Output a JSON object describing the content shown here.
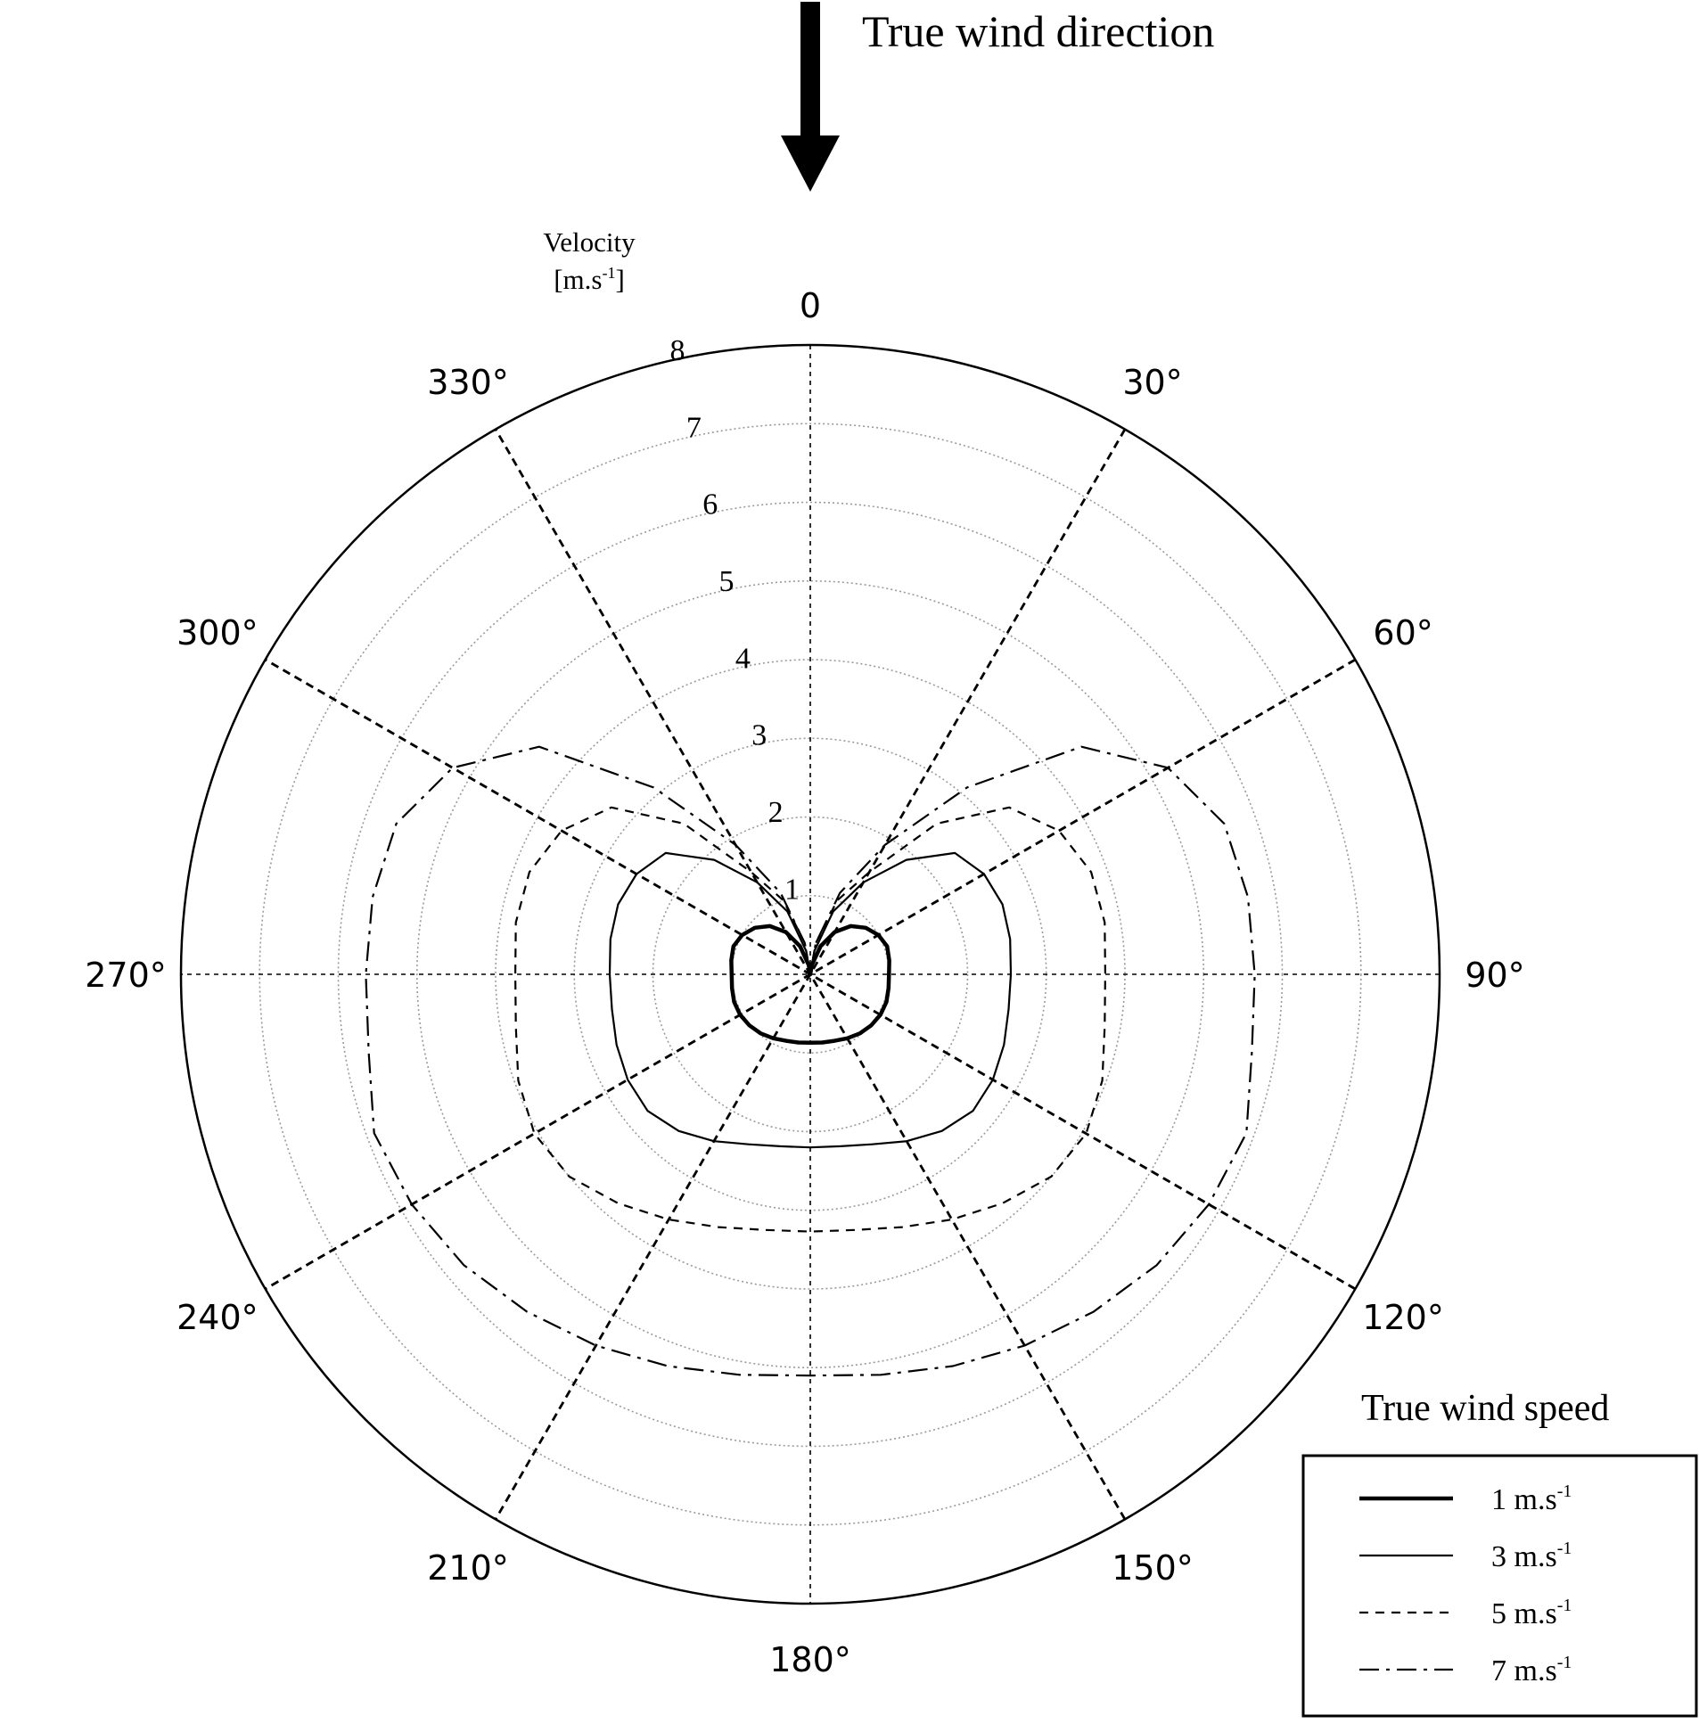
{
  "chart_data": {
    "type": "polar-line",
    "annotation": {
      "text": "True wind direction"
    },
    "radial_axis": {
      "title_line1": "Velocity",
      "title_unit": "[m.s",
      "title_sup": "-1",
      "title_close": "]",
      "range": [
        0,
        8
      ],
      "ticks": [
        "1",
        "2",
        "3",
        "4",
        "5",
        "6",
        "7",
        "8"
      ]
    },
    "angular_axis": {
      "labels": [
        {
          "angle": 0,
          "text": "0"
        },
        {
          "angle": 30,
          "text": "30°"
        },
        {
          "angle": 60,
          "text": "60°"
        },
        {
          "angle": 90,
          "text": "90°"
        },
        {
          "angle": 120,
          "text": "120°"
        },
        {
          "angle": 150,
          "text": "150°"
        },
        {
          "angle": 180,
          "text": "180°"
        },
        {
          "angle": 210,
          "text": "210°"
        },
        {
          "angle": 240,
          "text": "240°"
        },
        {
          "angle": 270,
          "text": "270°"
        },
        {
          "angle": 300,
          "text": "300°"
        },
        {
          "angle": 330,
          "text": "330°"
        }
      ],
      "direction": "clockwise",
      "zero": "top"
    },
    "grid": true,
    "legend": {
      "title": "True wind speed",
      "placement": "bottom-right"
    },
    "series": [
      {
        "name": "1 m.s",
        "name_sup": "-1",
        "style": "thick",
        "points": [
          [
            0,
            0
          ],
          [
            10,
            0.12
          ],
          [
            20,
            0.38
          ],
          [
            30,
            0.62
          ],
          [
            40,
            0.8
          ],
          [
            50,
            0.92
          ],
          [
            60,
            1.0
          ],
          [
            70,
            1.04
          ],
          [
            80,
            1.02
          ],
          [
            90,
            1.0
          ],
          [
            100,
            1.01
          ],
          [
            110,
            1.03
          ],
          [
            120,
            1.03
          ],
          [
            130,
            1.01
          ],
          [
            140,
            0.98
          ],
          [
            150,
            0.94
          ],
          [
            160,
            0.9
          ],
          [
            170,
            0.88
          ],
          [
            180,
            0.87
          ],
          [
            190,
            0.88
          ],
          [
            200,
            0.9
          ],
          [
            210,
            0.94
          ],
          [
            220,
            0.98
          ],
          [
            230,
            1.01
          ],
          [
            240,
            1.03
          ],
          [
            250,
            1.03
          ],
          [
            260,
            1.01
          ],
          [
            270,
            1.0
          ],
          [
            280,
            1.02
          ],
          [
            290,
            1.04
          ],
          [
            300,
            1.0
          ],
          [
            310,
            0.92
          ],
          [
            320,
            0.8
          ],
          [
            330,
            0.62
          ],
          [
            340,
            0.38
          ],
          [
            350,
            0.12
          ]
        ]
      },
      {
        "name": "3 m.s",
        "name_sup": "-1",
        "style": "thin",
        "points": [
          [
            0,
            0
          ],
          [
            10,
            0.3
          ],
          [
            20,
            0.85
          ],
          [
            30,
            1.35
          ],
          [
            40,
            1.9
          ],
          [
            50,
            2.4
          ],
          [
            60,
            2.55
          ],
          [
            70,
            2.6
          ],
          [
            80,
            2.58
          ],
          [
            90,
            2.55
          ],
          [
            100,
            2.56
          ],
          [
            110,
            2.62
          ],
          [
            120,
            2.68
          ],
          [
            130,
            2.7
          ],
          [
            140,
            2.6
          ],
          [
            150,
            2.45
          ],
          [
            160,
            2.3
          ],
          [
            170,
            2.22
          ],
          [
            180,
            2.2
          ],
          [
            190,
            2.22
          ],
          [
            200,
            2.3
          ],
          [
            210,
            2.45
          ],
          [
            220,
            2.6
          ],
          [
            230,
            2.7
          ],
          [
            240,
            2.68
          ],
          [
            250,
            2.62
          ],
          [
            260,
            2.56
          ],
          [
            270,
            2.55
          ],
          [
            280,
            2.58
          ],
          [
            290,
            2.6
          ],
          [
            300,
            2.55
          ],
          [
            310,
            2.4
          ],
          [
            320,
            1.9
          ],
          [
            330,
            1.35
          ],
          [
            340,
            0.85
          ],
          [
            350,
            0.3
          ]
        ]
      },
      {
        "name": "5 m.s",
        "name_sup": "-1",
        "style": "dashed",
        "points": [
          [
            0,
            0
          ],
          [
            10,
            0.4
          ],
          [
            20,
            1.0
          ],
          [
            30,
            1.5
          ],
          [
            40,
            2.5
          ],
          [
            50,
            3.3
          ],
          [
            60,
            3.65
          ],
          [
            70,
            3.8
          ],
          [
            80,
            3.8
          ],
          [
            90,
            3.75
          ],
          [
            100,
            3.8
          ],
          [
            110,
            3.95
          ],
          [
            120,
            4.05
          ],
          [
            130,
            4.0
          ],
          [
            140,
            3.8
          ],
          [
            150,
            3.6
          ],
          [
            160,
            3.42
          ],
          [
            170,
            3.3
          ],
          [
            180,
            3.27
          ],
          [
            190,
            3.3
          ],
          [
            200,
            3.42
          ],
          [
            210,
            3.6
          ],
          [
            220,
            3.8
          ],
          [
            230,
            4.0
          ],
          [
            240,
            4.05
          ],
          [
            250,
            3.95
          ],
          [
            260,
            3.8
          ],
          [
            270,
            3.75
          ],
          [
            280,
            3.8
          ],
          [
            290,
            3.8
          ],
          [
            300,
            3.65
          ],
          [
            310,
            3.3
          ],
          [
            320,
            2.5
          ],
          [
            330,
            1.5
          ],
          [
            340,
            1.0
          ],
          [
            350,
            0.4
          ]
        ]
      },
      {
        "name": "7 m.s",
        "name_sup": "-1",
        "style": "dash-dot",
        "points": [
          [
            0,
            0
          ],
          [
            10,
            0.4
          ],
          [
            20,
            1.1
          ],
          [
            30,
            1.9
          ],
          [
            40,
            3.1
          ],
          [
            50,
            4.5
          ],
          [
            60,
            5.25
          ],
          [
            70,
            5.6
          ],
          [
            80,
            5.65
          ],
          [
            90,
            5.65
          ],
          [
            100,
            5.7
          ],
          [
            110,
            5.9
          ],
          [
            120,
            5.85
          ],
          [
            130,
            5.75
          ],
          [
            140,
            5.6
          ],
          [
            150,
            5.45
          ],
          [
            160,
            5.3
          ],
          [
            170,
            5.17
          ],
          [
            180,
            5.1
          ],
          [
            190,
            5.17
          ],
          [
            200,
            5.3
          ],
          [
            210,
            5.45
          ],
          [
            220,
            5.6
          ],
          [
            230,
            5.75
          ],
          [
            240,
            5.85
          ],
          [
            250,
            5.9
          ],
          [
            260,
            5.7
          ],
          [
            270,
            5.65
          ],
          [
            280,
            5.65
          ],
          [
            290,
            5.6
          ],
          [
            300,
            5.25
          ],
          [
            310,
            4.5
          ],
          [
            320,
            3.1
          ],
          [
            330,
            1.9
          ],
          [
            340,
            1.1
          ],
          [
            350,
            0.4
          ]
        ]
      }
    ]
  }
}
